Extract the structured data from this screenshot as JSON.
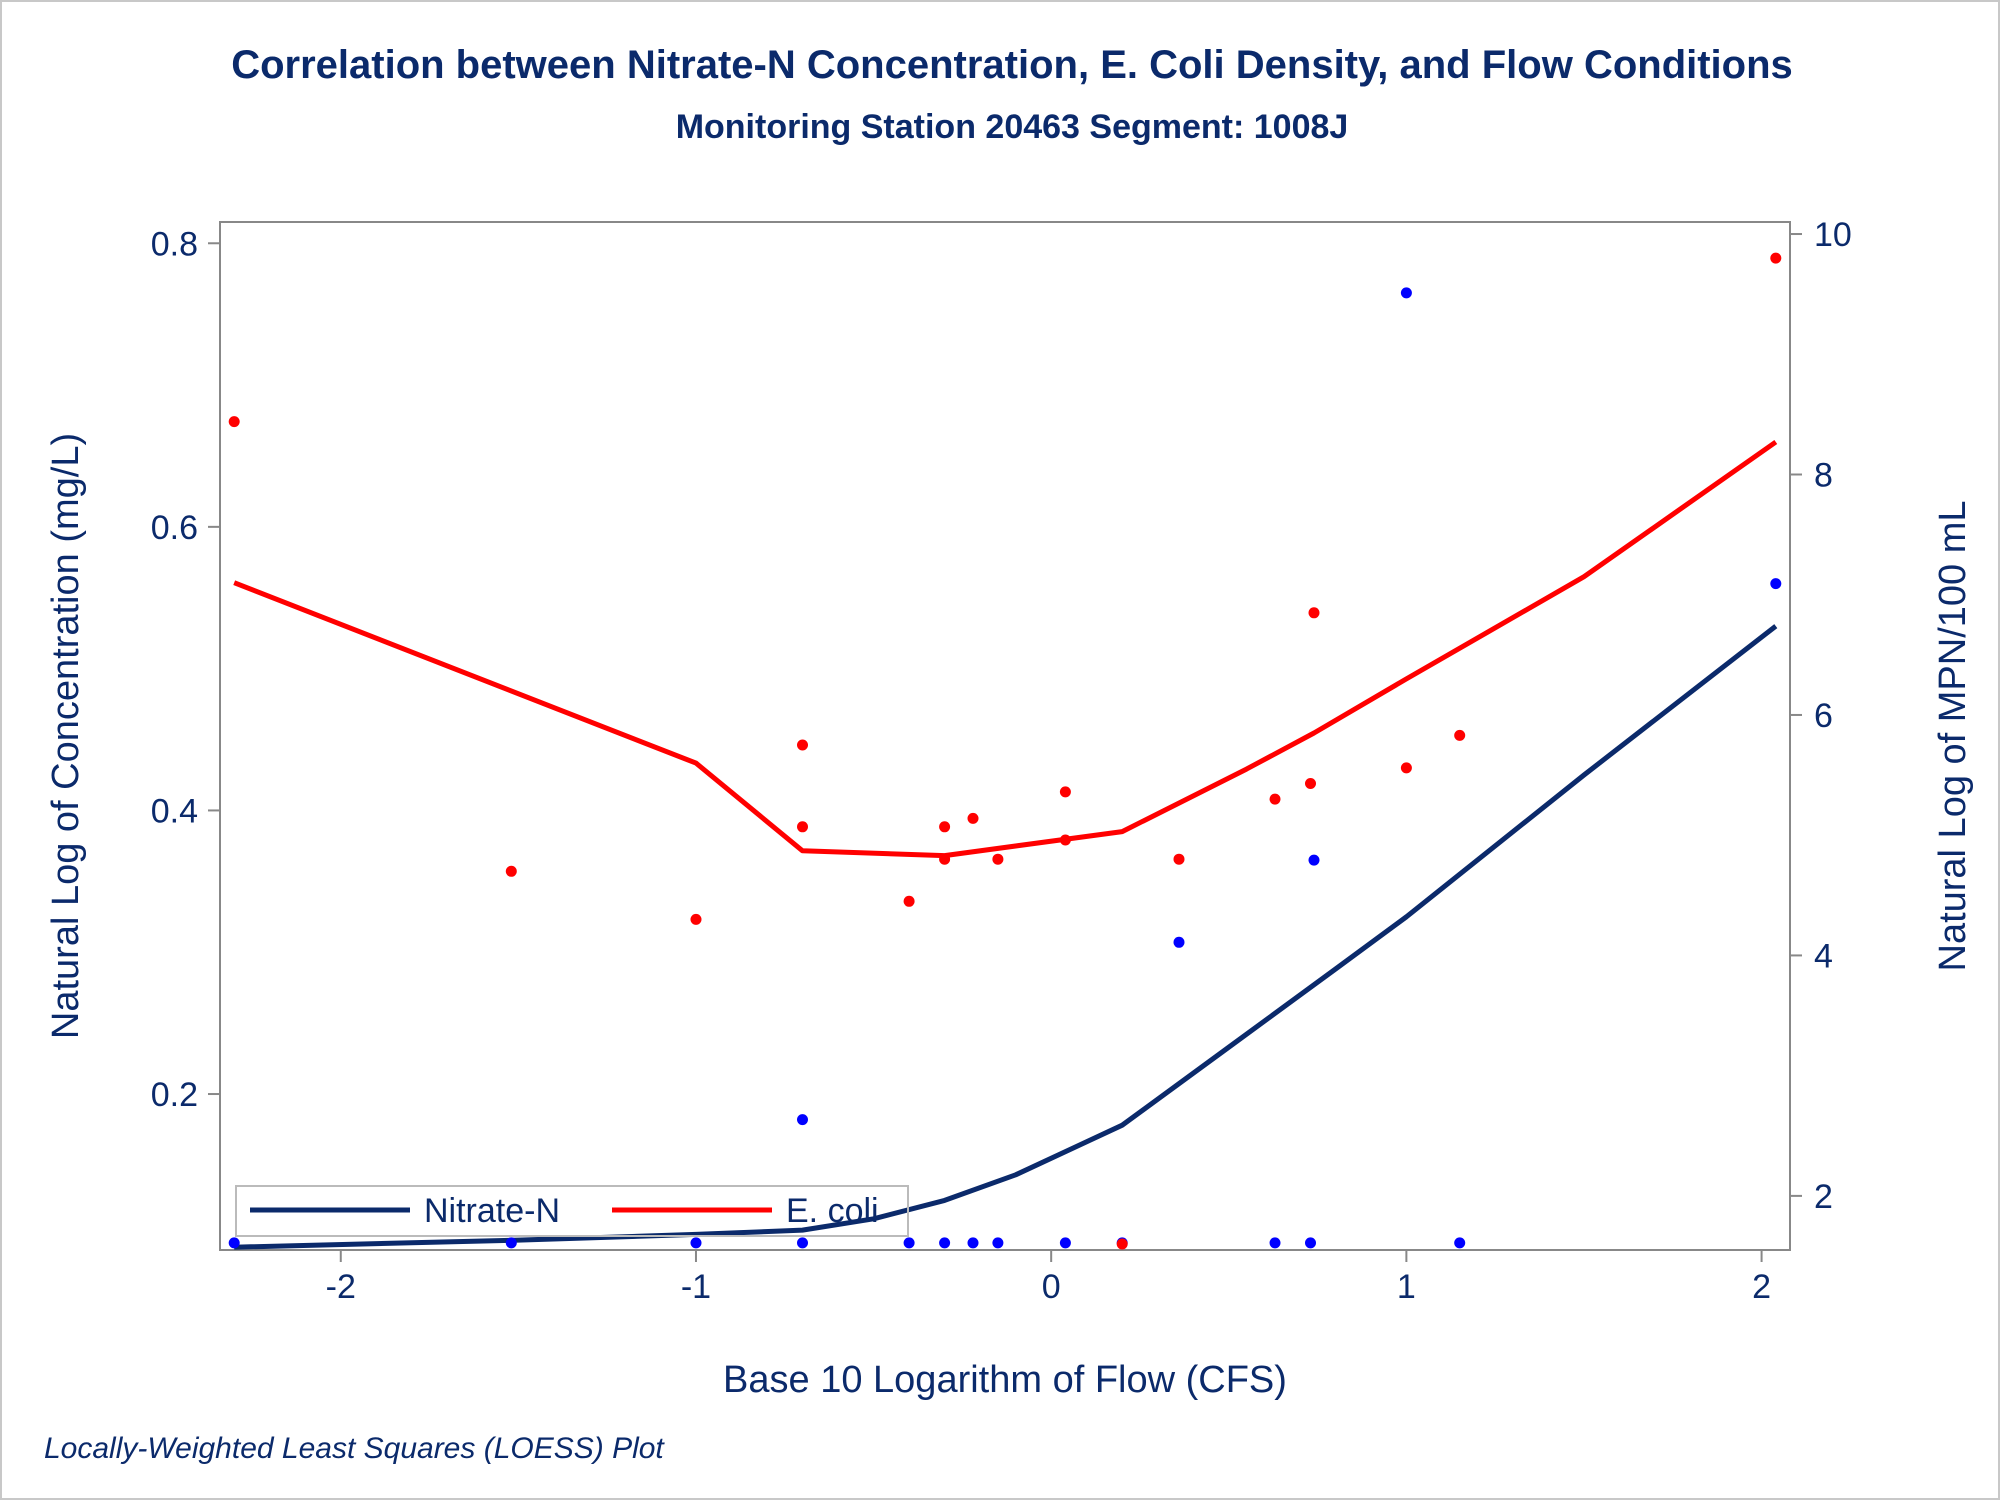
{
  "chart_data": {
    "type": "scatter",
    "title": "Correlation between Nitrate-N Concentration, E. Coli Density, and Flow Conditions",
    "subtitle": "Monitoring Station 20463 Segment: 1008J",
    "xlabel": "Base 10 Logarithm of Flow (CFS)",
    "ylabel_left": "Natural Log of Concentration (mg/L)",
    "ylabel_right": "Natural Log of MPN/100 mL",
    "footnote": "Locally-Weighted Least Squares (LOESS) Plot",
    "xlim": [
      -2.34,
      2.08
    ],
    "ylim_left": [
      0.09,
      0.815
    ],
    "ylim_right": [
      1.55,
      10.1
    ],
    "x_ticks": [
      -2,
      -1,
      0,
      1,
      2
    ],
    "x_tick_labels": [
      "-2",
      "-1",
      "0",
      "1",
      "2"
    ],
    "y_left_ticks": [
      0.2,
      0.4,
      0.6,
      0.8
    ],
    "y_left_tick_labels": [
      "0.2",
      "0.4",
      "0.6",
      "0.8"
    ],
    "y_right_ticks": [
      2,
      4,
      6,
      8,
      10
    ],
    "y_right_tick_labels": [
      "2",
      "4",
      "6",
      "8",
      "10"
    ],
    "grid": false,
    "legend_position": "bottom-left (inside)",
    "series": [
      {
        "name": "Nitrate-N",
        "axis": "left",
        "color": "#0b2a6b",
        "point_color": "#0000ff",
        "points": [
          {
            "x": -2.3,
            "y": 0.095
          },
          {
            "x": -1.52,
            "y": 0.095
          },
          {
            "x": -1.0,
            "y": 0.095
          },
          {
            "x": -0.7,
            "y": 0.182
          },
          {
            "x": -0.7,
            "y": 0.095
          },
          {
            "x": -0.4,
            "y": 0.095
          },
          {
            "x": -0.3,
            "y": 0.095
          },
          {
            "x": -0.22,
            "y": 0.095
          },
          {
            "x": -0.15,
            "y": 0.095
          },
          {
            "x": 0.04,
            "y": 0.095
          },
          {
            "x": 0.2,
            "y": 0.095
          },
          {
            "x": 0.36,
            "y": 0.307
          },
          {
            "x": 0.63,
            "y": 0.095
          },
          {
            "x": 0.73,
            "y": 0.095
          },
          {
            "x": 0.74,
            "y": 0.365
          },
          {
            "x": 1.0,
            "y": 0.765
          },
          {
            "x": 1.15,
            "y": 0.095
          },
          {
            "x": 2.04,
            "y": 0.56
          }
        ],
        "loess": [
          {
            "x": -2.3,
            "y": 0.092
          },
          {
            "x": -1.5,
            "y": 0.097
          },
          {
            "x": -1.0,
            "y": 0.101
          },
          {
            "x": -0.7,
            "y": 0.104
          },
          {
            "x": -0.5,
            "y": 0.112
          },
          {
            "x": -0.3,
            "y": 0.125
          },
          {
            "x": -0.1,
            "y": 0.143
          },
          {
            "x": 0.2,
            "y": 0.178
          },
          {
            "x": 0.5,
            "y": 0.233
          },
          {
            "x": 0.8,
            "y": 0.288
          },
          {
            "x": 1.0,
            "y": 0.325
          },
          {
            "x": 1.5,
            "y": 0.425
          },
          {
            "x": 2.04,
            "y": 0.53
          }
        ]
      },
      {
        "name": "E. coli",
        "axis": "right",
        "color": "#ff0000",
        "point_color": "#ff0000",
        "points": [
          {
            "x": -2.3,
            "y": 8.44
          },
          {
            "x": -1.52,
            "y": 4.7
          },
          {
            "x": -1.0,
            "y": 4.3
          },
          {
            "x": -0.7,
            "y": 5.75
          },
          {
            "x": -0.7,
            "y": 5.07
          },
          {
            "x": -0.4,
            "y": 4.45
          },
          {
            "x": -0.3,
            "y": 5.07
          },
          {
            "x": -0.3,
            "y": 4.8
          },
          {
            "x": -0.22,
            "y": 5.14
          },
          {
            "x": -0.15,
            "y": 4.8
          },
          {
            "x": 0.04,
            "y": 5.36
          },
          {
            "x": 0.04,
            "y": 4.96
          },
          {
            "x": 0.2,
            "y": 1.6
          },
          {
            "x": 0.36,
            "y": 4.8
          },
          {
            "x": 0.63,
            "y": 5.3
          },
          {
            "x": 0.73,
            "y": 5.43
          },
          {
            "x": 0.74,
            "y": 6.85
          },
          {
            "x": 1.0,
            "y": 5.56
          },
          {
            "x": 1.15,
            "y": 5.83
          },
          {
            "x": 2.04,
            "y": 9.8
          }
        ],
        "loess": [
          {
            "x": -2.3,
            "y": 7.1
          },
          {
            "x": -1.0,
            "y": 5.6
          },
          {
            "x": -0.7,
            "y": 4.87
          },
          {
            "x": -0.3,
            "y": 4.83
          },
          {
            "x": 0.2,
            "y": 5.03
          },
          {
            "x": 0.55,
            "y": 5.55
          },
          {
            "x": 0.74,
            "y": 5.85
          },
          {
            "x": 1.0,
            "y": 6.3
          },
          {
            "x": 1.5,
            "y": 7.15
          },
          {
            "x": 2.04,
            "y": 8.27
          }
        ]
      }
    ]
  }
}
